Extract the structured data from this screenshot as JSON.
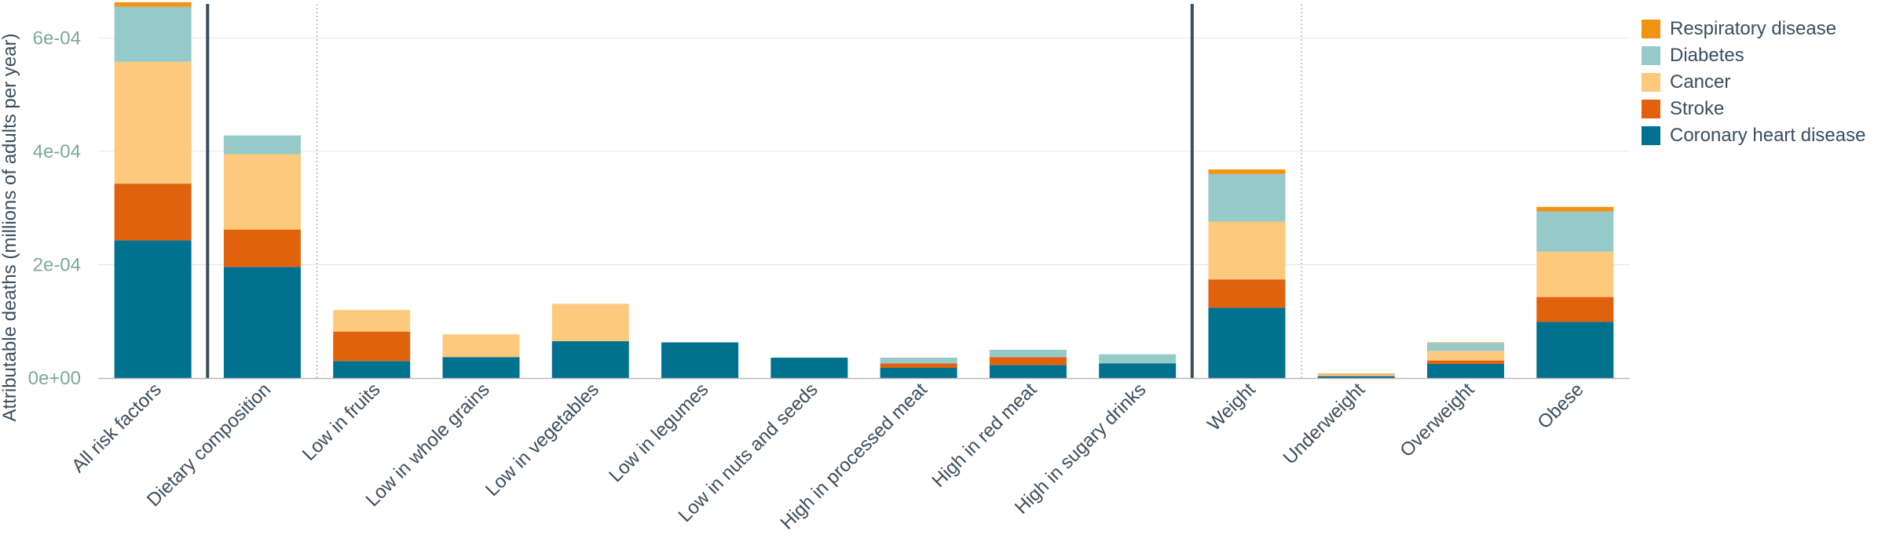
{
  "chart_data": {
    "type": "bar",
    "stacked": true,
    "ylabel": "Attributable deaths (millions of adults per year)",
    "xlabel": "",
    "ylim": [
      0,
      0.00066
    ],
    "yticks": [
      0,
      0.0002,
      0.0004,
      0.0006
    ],
    "ytick_labels": [
      "0e+00",
      "2e-04",
      "4e-04",
      "6e-04"
    ],
    "grid": true,
    "legend_position": "top-right",
    "categories": [
      "All risk factors",
      "Dietary composition",
      "Low in fruits",
      "Low in whole grains",
      "Low in vegetables",
      "Low in legumes",
      "Low in nuts and seeds",
      "High in processed meat",
      "High in red meat",
      "High in sugary drinks",
      "Weight",
      "Underweight",
      "Overweight",
      "Obese"
    ],
    "series": [
      {
        "name": "Coronary heart disease",
        "color": "#00718f",
        "values": [
          0.000243,
          0.000196,
          3e-05,
          3.7e-05,
          6.5e-05,
          6.3e-05,
          3.6e-05,
          1.8e-05,
          2.3e-05,
          2.6e-05,
          0.000124,
          3e-06,
          2.5e-05,
          9.9e-05
        ]
      },
      {
        "name": "Stroke",
        "color": "#e0620d",
        "values": [
          0.0001,
          6.6e-05,
          5.2e-05,
          0.0,
          0.0,
          0.0,
          0.0,
          8e-06,
          1.4e-05,
          0.0,
          5e-05,
          1e-06,
          6e-06,
          4.4e-05
        ]
      },
      {
        "name": "Cancer",
        "color": "#fcc97d",
        "values": [
          0.000215,
          0.000133,
          3.8e-05,
          4e-05,
          6.6e-05,
          0.0,
          0.0,
          0.0,
          0.0,
          0.0,
          0.000102,
          2e-06,
          1.7e-05,
          8e-05
        ]
      },
      {
        "name": "Diabetes",
        "color": "#95cac9",
        "values": [
          9.7e-05,
          3.3e-05,
          0.0,
          0.0,
          0.0,
          0.0,
          0.0,
          1e-05,
          1.3e-05,
          1.6e-05,
          8.4e-05,
          1e-06,
          1.4e-05,
          7.1e-05
        ]
      },
      {
        "name": "Respiratory disease",
        "color": "#f39314",
        "values": [
          8e-06,
          0.0,
          0.0,
          0.0,
          0.0,
          0.0,
          0.0,
          0.0,
          0.0,
          0.0,
          8e-06,
          1e-06,
          1e-06,
          8e-06
        ]
      }
    ],
    "group_separators_after": [
      0,
      9
    ],
    "dotted_separators_after": [
      1,
      10
    ],
    "axis_color": "#3a4e5e",
    "tick_label_color": "#7fa89a",
    "grid_color": "#e6e6e6"
  }
}
